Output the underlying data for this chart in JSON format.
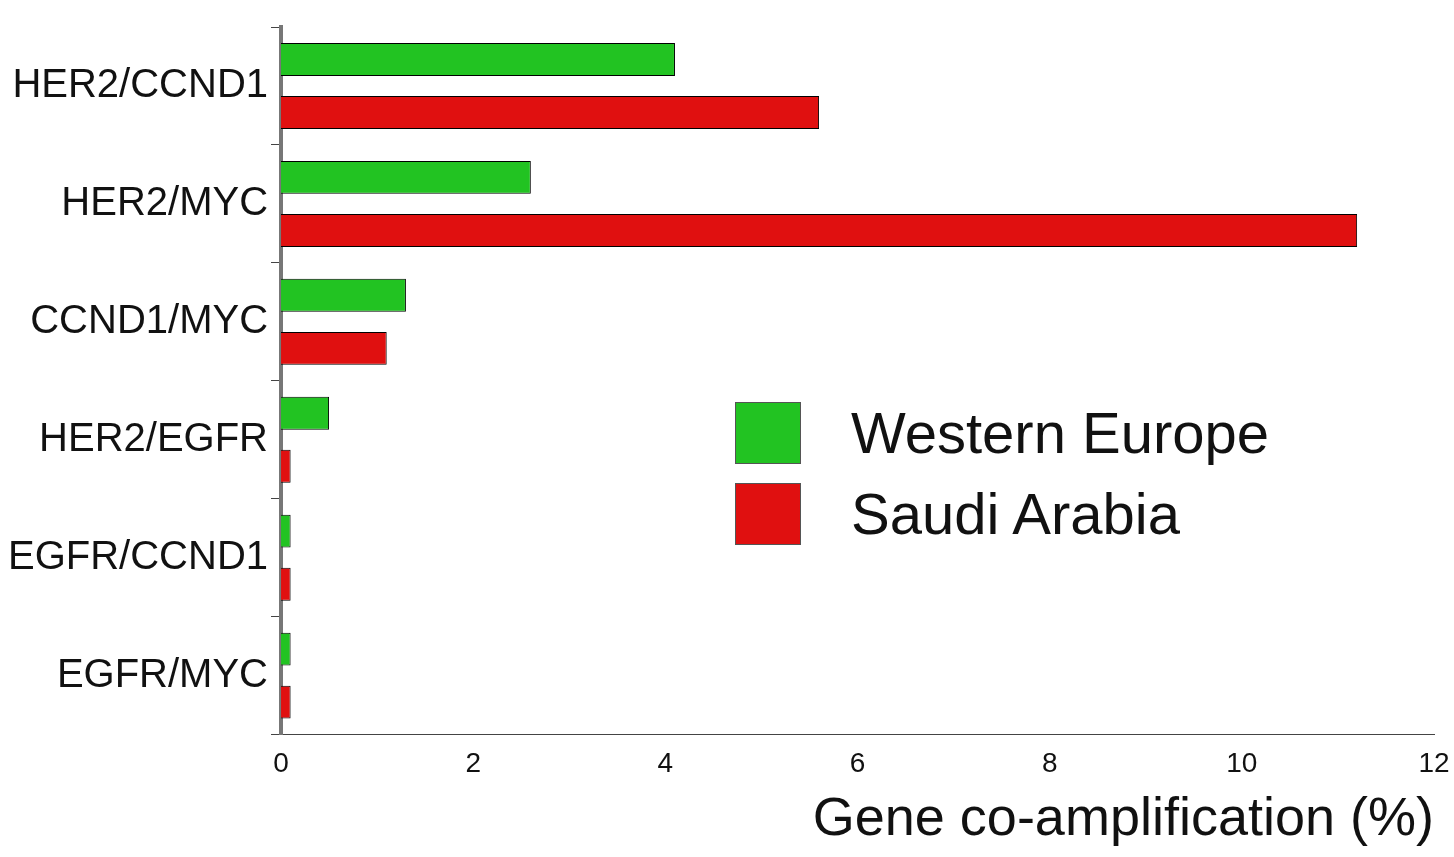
{
  "chart_data": {
    "type": "bar",
    "orientation": "horizontal",
    "xlabel": "Gene co-amplification (%)",
    "categories": [
      "HER2/CCND1",
      "HER2/MYC",
      "CCND1/MYC",
      "HER2/EGFR",
      "EGFR/CCND1",
      "EGFR/MYC"
    ],
    "series": [
      {
        "name": "Western Europe",
        "color": "#22c322",
        "values": [
          4.1,
          2.6,
          1.3,
          0.5,
          0.1,
          0.1
        ]
      },
      {
        "name": "Saudi Arabia",
        "color": "#e01010",
        "values": [
          5.6,
          11.2,
          1.1,
          0.1,
          0.1,
          0.1
        ]
      }
    ],
    "xlim": [
      0,
      12
    ],
    "xticks": [
      0,
      2,
      4,
      6,
      8,
      10,
      12
    ],
    "grid": false,
    "legend": "right"
  }
}
